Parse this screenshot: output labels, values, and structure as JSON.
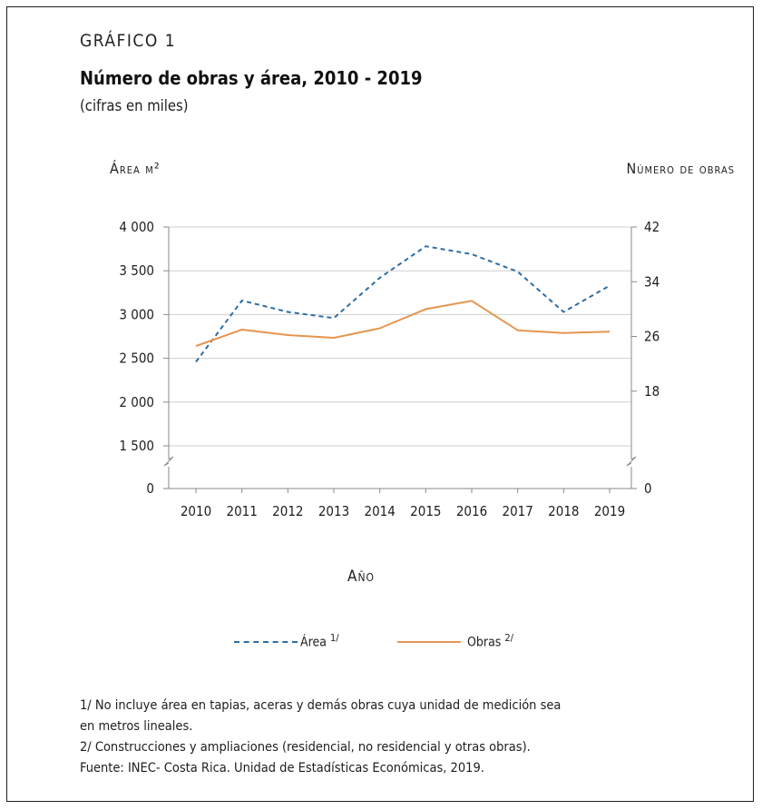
{
  "header": {
    "kicker": "GRÁFICO 1",
    "title": "Número de obras y área, 2010 - 2019",
    "subtitle": "(cifras en miles)"
  },
  "chart_data": {
    "type": "line",
    "title": "Número de obras y área, 2010 - 2019",
    "subtitle": "(cifras en miles)",
    "xlabel": "Año",
    "ylabel_left": "Área m²",
    "ylabel_right": "Número de obras",
    "x": [
      "2010",
      "2011",
      "2012",
      "2013",
      "2014",
      "2015",
      "2016",
      "2017",
      "2018",
      "2019"
    ],
    "y_left_ticks": [
      "0",
      "1 500",
      "2 000",
      "2 500",
      "3 000",
      "3 500",
      "4 000"
    ],
    "y_left_range": [
      1500,
      4000
    ],
    "y_left_axis_break": true,
    "y_right_ticks": [
      "0",
      "18",
      "26",
      "34",
      "42"
    ],
    "y_right_range": [
      10,
      42
    ],
    "y_right_axis_break": true,
    "grid": "horizontal",
    "legend_position": "bottom",
    "series": [
      {
        "name": "Área",
        "note": "1/",
        "axis": "left",
        "style": "dashed",
        "color": "#2e6da4",
        "values": [
          2460,
          3160,
          3030,
          2960,
          3420,
          3780,
          3690,
          3490,
          3030,
          3330
        ]
      },
      {
        "name": "Obras",
        "note": "2/",
        "axis": "right",
        "style": "solid",
        "color": "#e6954f",
        "values": [
          24.6,
          27.0,
          26.2,
          25.8,
          27.2,
          30.0,
          31.2,
          26.9,
          26.5,
          26.7
        ]
      }
    ]
  },
  "legend": {
    "area_label": "Área",
    "area_note": "1/",
    "obras_label": "Obras",
    "obras_note": "2/"
  },
  "notes": {
    "note1_line1": "1/ No incluye área en tapias, aceras y demás obras cuya unidad de medición sea",
    "note1_line2": "en metros lineales.",
    "note2": "2/ Construcciones y ampliaciones (residencial, no residencial y otras obras).",
    "source": "Fuente: INEC- Costa Rica. Unidad de Estadísticas Económicas, 2019."
  },
  "colors": {
    "area": "#2e6da4",
    "obras": "#e6954f",
    "grid": "#cfcfcf",
    "axis": "#8a8a8a"
  }
}
